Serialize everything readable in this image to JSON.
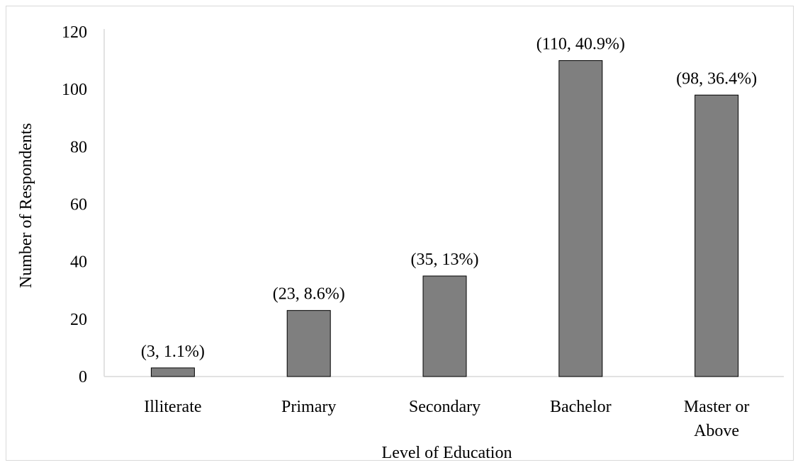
{
  "chart_data": {
    "type": "bar",
    "categories": [
      "Illiterate",
      "Primary",
      "Secondary",
      "Bachelor",
      "Master or Above"
    ],
    "category_lines": [
      [
        "Illiterate"
      ],
      [
        "Primary"
      ],
      [
        "Secondary"
      ],
      [
        "Bachelor"
      ],
      [
        "Master or",
        "Above"
      ]
    ],
    "values": [
      3,
      23,
      35,
      110,
      98
    ],
    "data_labels": [
      "(3, 1.1%)",
      "(23, 8.6%)",
      "(35, 13%)",
      "(110, 40.9%)",
      "(98, 36.4%)"
    ],
    "xlabel": "Level of Education",
    "ylabel": "Number of Respondents",
    "ylim": [
      0,
      120
    ],
    "yticks": [
      0,
      20,
      40,
      60,
      80,
      100,
      120
    ],
    "grid": false,
    "bar_color": "#7f7f7f",
    "bar_edge_color": "#000000",
    "axis_color": "#d9d9d9"
  }
}
